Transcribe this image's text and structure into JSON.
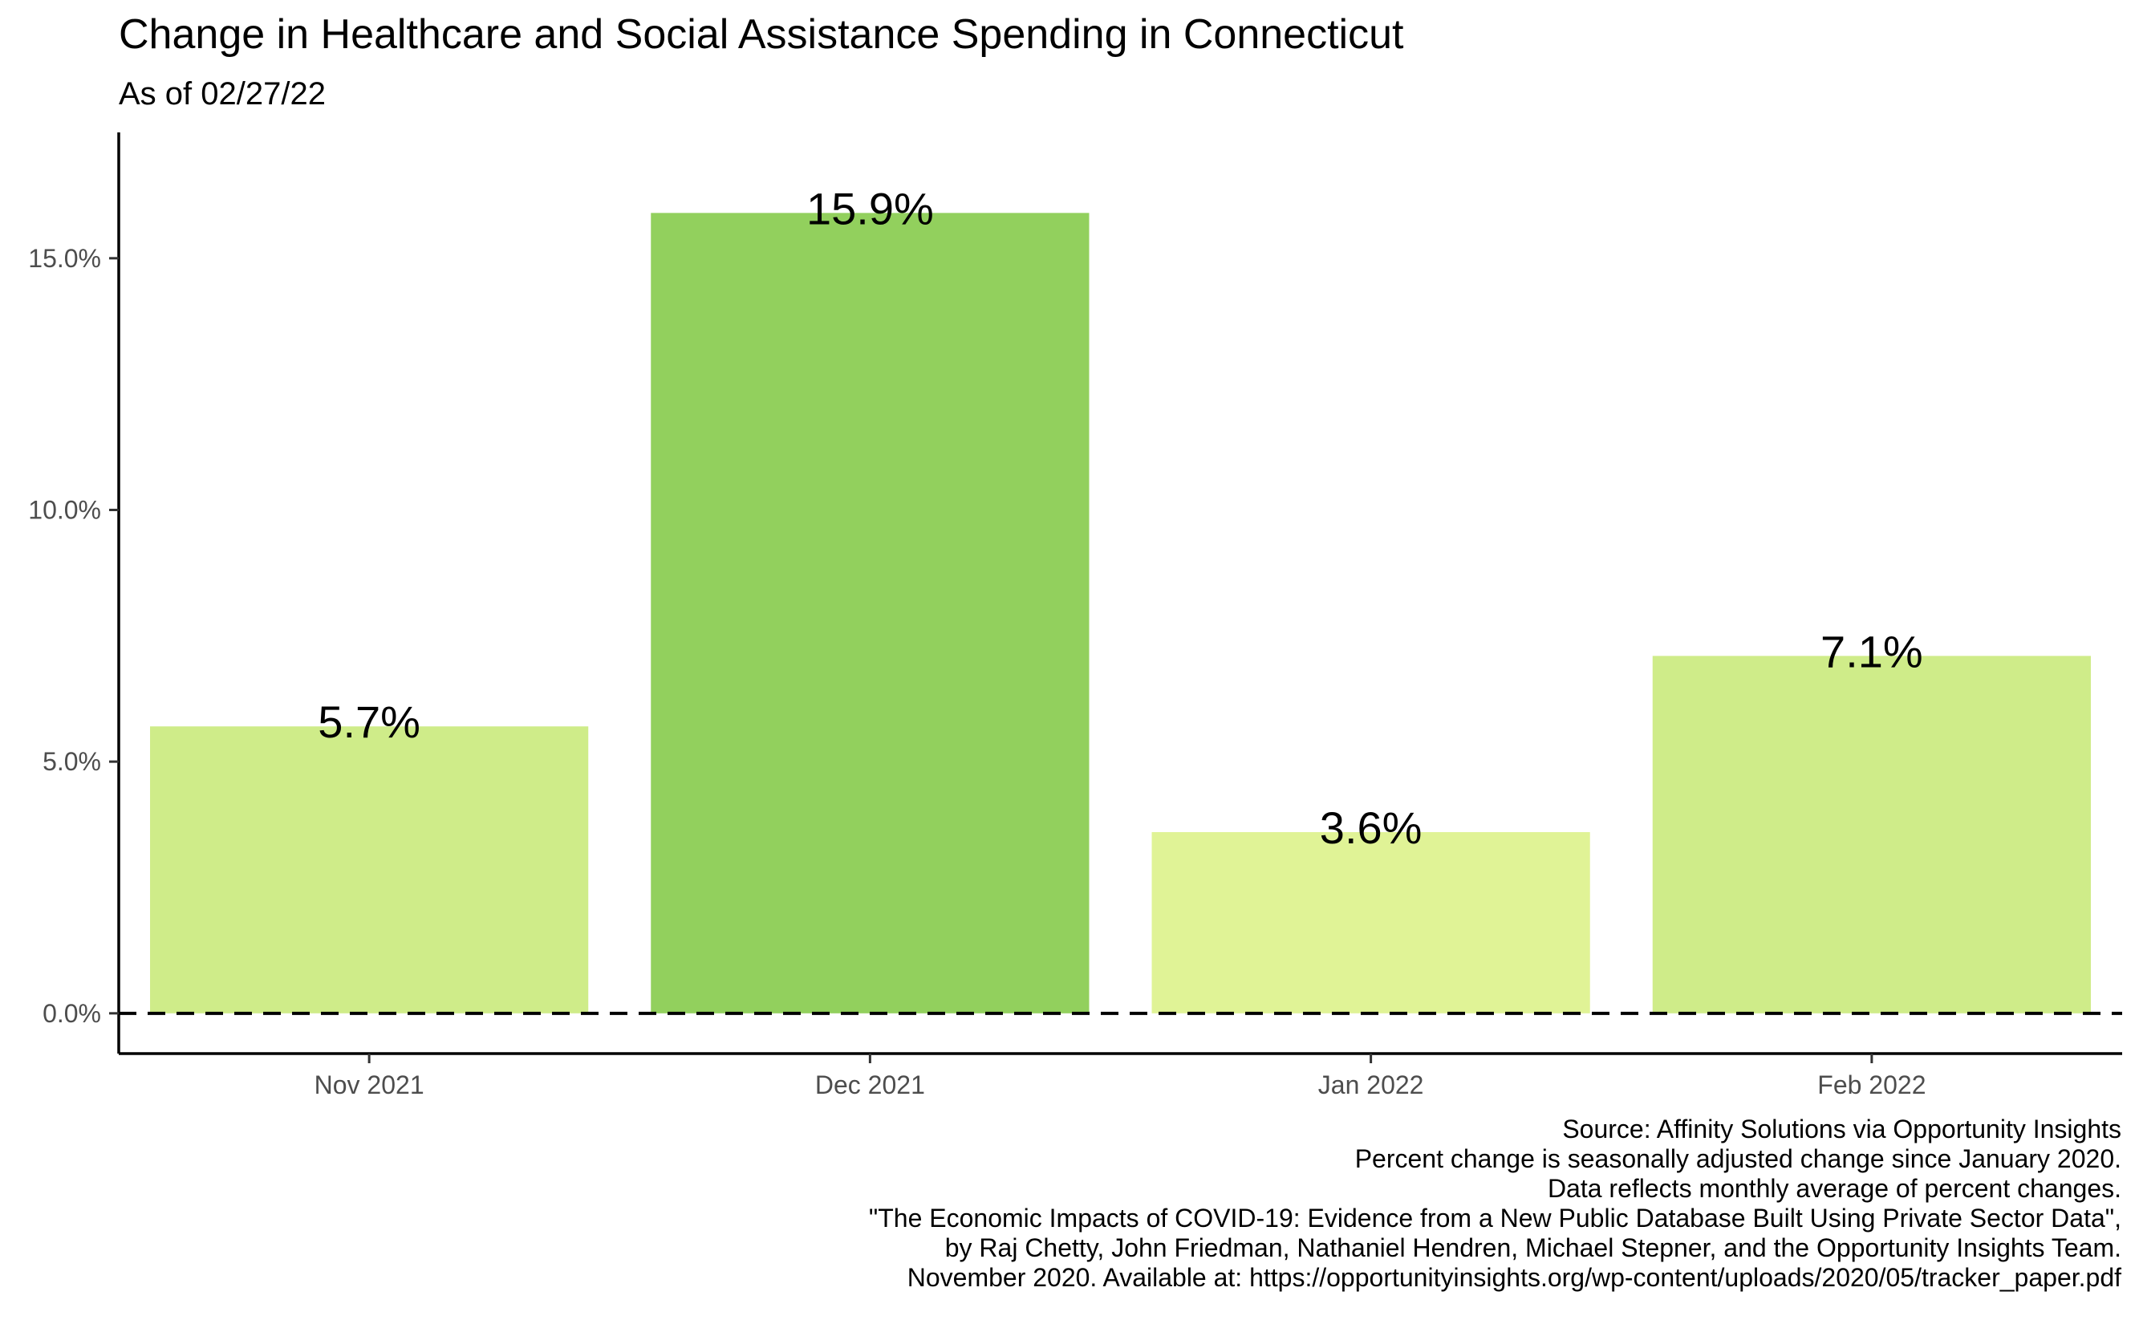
{
  "chart_data": {
    "type": "bar",
    "title": "Change in Healthcare and Social Assistance Spending in Connecticut",
    "subtitle": "As of 02/27/22",
    "categories": [
      "Nov 2021",
      "Dec 2021",
      "Jan 2022",
      "Feb 2022"
    ],
    "values": [
      5.7,
      15.9,
      3.6,
      7.1
    ],
    "value_labels": [
      "5.7%",
      "15.9%",
      "3.6%",
      "7.1%"
    ],
    "bar_colors": [
      "#cfec89",
      "#92d05d",
      "#e0f396",
      "#cfec89"
    ],
    "ylim": [
      -0.8,
      17.5
    ],
    "y_ticks": [
      0,
      5,
      10,
      15
    ],
    "y_tick_labels": [
      "0.0%",
      "5.0%",
      "10.0%",
      "15.0%"
    ],
    "reference_line": {
      "value": 0,
      "style": "dashed"
    },
    "grid": false,
    "legend": "none",
    "caption_lines": [
      "Source: Affinity Solutions via Opportunity Insights",
      "Percent change is seasonally adjusted change since January 2020.",
      "Data reflects monthly average of percent changes.",
      "\"The Economic Impacts of COVID-19: Evidence from a New Public Database Built Using Private Sector Data\",",
      "by Raj Chetty, John Friedman, Nathaniel Hendren, Michael Stepner, and the Opportunity Insights Team.",
      "November 2020. Available at: https://opportunityinsights.org/wp-content/uploads/2020/05/tracker_paper.pdf"
    ]
  }
}
